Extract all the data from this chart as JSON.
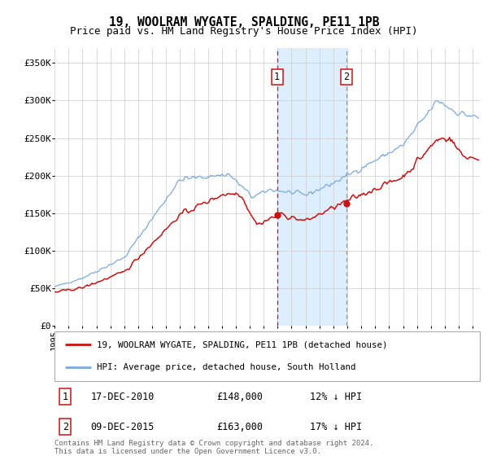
{
  "title": "19, WOOLRAM WYGATE, SPALDING, PE11 1PB",
  "subtitle": "Price paid vs. HM Land Registry's House Price Index (HPI)",
  "ylim": [
    0,
    370000
  ],
  "yticks": [
    0,
    50000,
    100000,
    150000,
    200000,
    250000,
    300000,
    350000
  ],
  "ytick_labels": [
    "£0",
    "£50K",
    "£100K",
    "£150K",
    "£200K",
    "£250K",
    "£300K",
    "£350K"
  ],
  "year_start": 1995,
  "year_end": 2025,
  "sale1_year": 2010.96,
  "sale1_price": 148000,
  "sale2_year": 2015.93,
  "sale2_price": 163000,
  "sale1_date": "17-DEC-2010",
  "sale2_date": "09-DEC-2015",
  "sale1_hpi_note": "12% ↓ HPI",
  "sale2_hpi_note": "17% ↓ HPI",
  "hpi_color": "#7aaadd",
  "property_color": "#cc1111",
  "shade_color": "#ddeeff",
  "dashed_line1_color": "#cc1111",
  "dashed_line2_color": "#999999",
  "legend1": "19, WOOLRAM WYGATE, SPALDING, PE11 1PB (detached house)",
  "legend2": "HPI: Average price, detached house, South Holland",
  "footer": "Contains HM Land Registry data © Crown copyright and database right 2024.\nThis data is licensed under the Open Government Licence v3.0.",
  "background_color": "#ffffff",
  "grid_color": "#cccccc",
  "title_fontsize": 10.5,
  "subtitle_fontsize": 9,
  "tick_fontsize": 8
}
